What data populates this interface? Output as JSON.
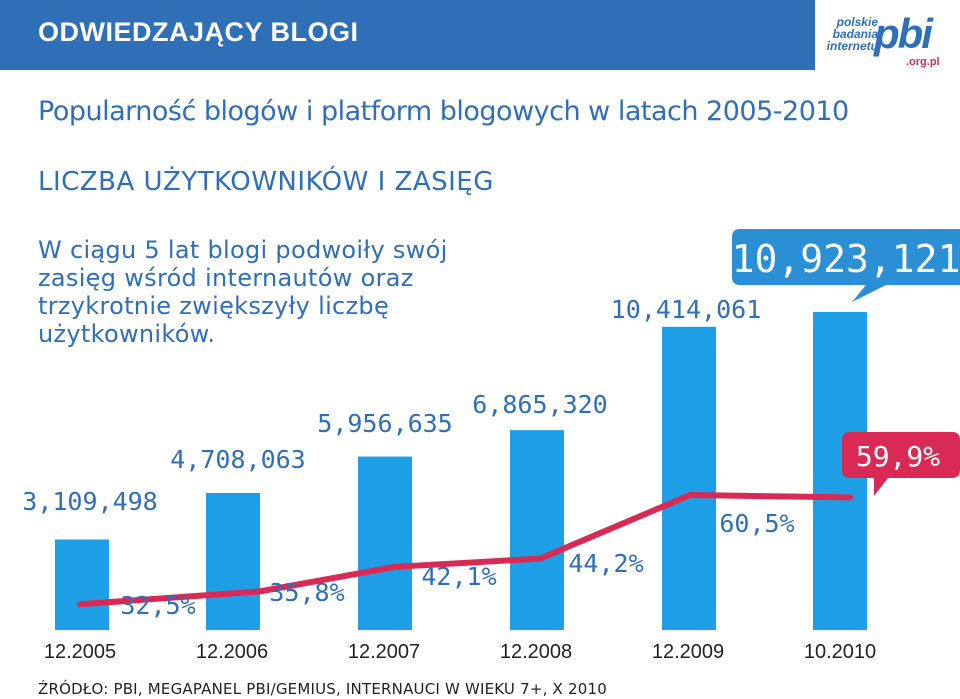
{
  "header": {
    "title": "ODWIEDZAJĄCY BLOGI",
    "logo": {
      "line1": "polskie",
      "line2": "badania",
      "line3": "internetu",
      "brand": "pbi",
      "domain": ".org.pl"
    }
  },
  "subtitle": "Popularność blogów i platform blogowych w latach 2005-2010",
  "section_title": "LICZBA UŻYTKOWNIKÓW I ZASIĘG",
  "description": "W ciągu 5 lat blogi podwoiły swój zasięg wśród internautów oraz trzykrotnie zwiększyły liczbę użytkowników.",
  "source": "ŹRÓDŁO: PBI, MEGAPANEL PBI/GEMIUS, INTERNAUCI W WIEKU 7+, X 2010",
  "colors": {
    "brand_blue": "#2f6fb8",
    "bar_blue": "#1e9ee4",
    "line_red": "#d82a55",
    "bubble_blue": "#2b8fd6"
  },
  "chart_data": {
    "type": "bar",
    "categories": [
      "12.2005",
      "12.2006",
      "12.2007",
      "12.2008",
      "12.2009",
      "10.2010"
    ],
    "value_labels": [
      "3,109,498",
      "4,708,063",
      "5,956,635",
      "6,865,320",
      "10,414,061",
      "10,923,121"
    ],
    "series": [
      {
        "values": [
          3109498,
          4708063,
          5956635,
          6865320,
          10414061,
          10923121
        ]
      },
      {
        "type": "line",
        "values": [
          32.5,
          35.8,
          42.1,
          44.2,
          60.5,
          59.9
        ]
      }
    ],
    "percent_labels": [
      "32,5%",
      "35,8%",
      "42,1%",
      "44,2%",
      "60,5%",
      "59,9%"
    ],
    "highlight": {
      "bar_index": 5,
      "percent_index": 5
    },
    "ylim": [
      0,
      11000000
    ],
    "grid": false,
    "legend": "none"
  }
}
